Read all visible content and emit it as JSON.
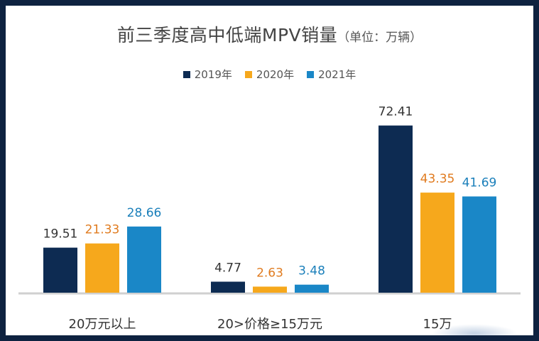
{
  "chart_data": {
    "type": "bar",
    "title": "前三季度高中低端MPV销量",
    "subtitle": "（单位：万辆）",
    "categories": [
      "20万元以上",
      "20>价格≥15万元",
      "15万"
    ],
    "series": [
      {
        "name": "2019年",
        "values": [
          19.51,
          4.77,
          72.41
        ],
        "color": "#0d2b52",
        "label_color": "#333333"
      },
      {
        "name": "2020年",
        "values": [
          21.33,
          2.63,
          43.35
        ],
        "color": "#f6a81c",
        "label_color": "#e07b1f"
      },
      {
        "name": "2021年",
        "values": [
          28.66,
          3.48,
          41.69
        ],
        "color": "#1a87c7",
        "label_color": "#1a7fba"
      }
    ],
    "value_labels": [
      [
        "19.51",
        "4.77",
        "72.41"
      ],
      [
        "21.33",
        "2.63",
        "43.35"
      ],
      [
        "28.66",
        "3.48",
        "41.69"
      ]
    ],
    "ylim": [
      0,
      80
    ],
    "grid": false,
    "legend_position": "top-center"
  }
}
